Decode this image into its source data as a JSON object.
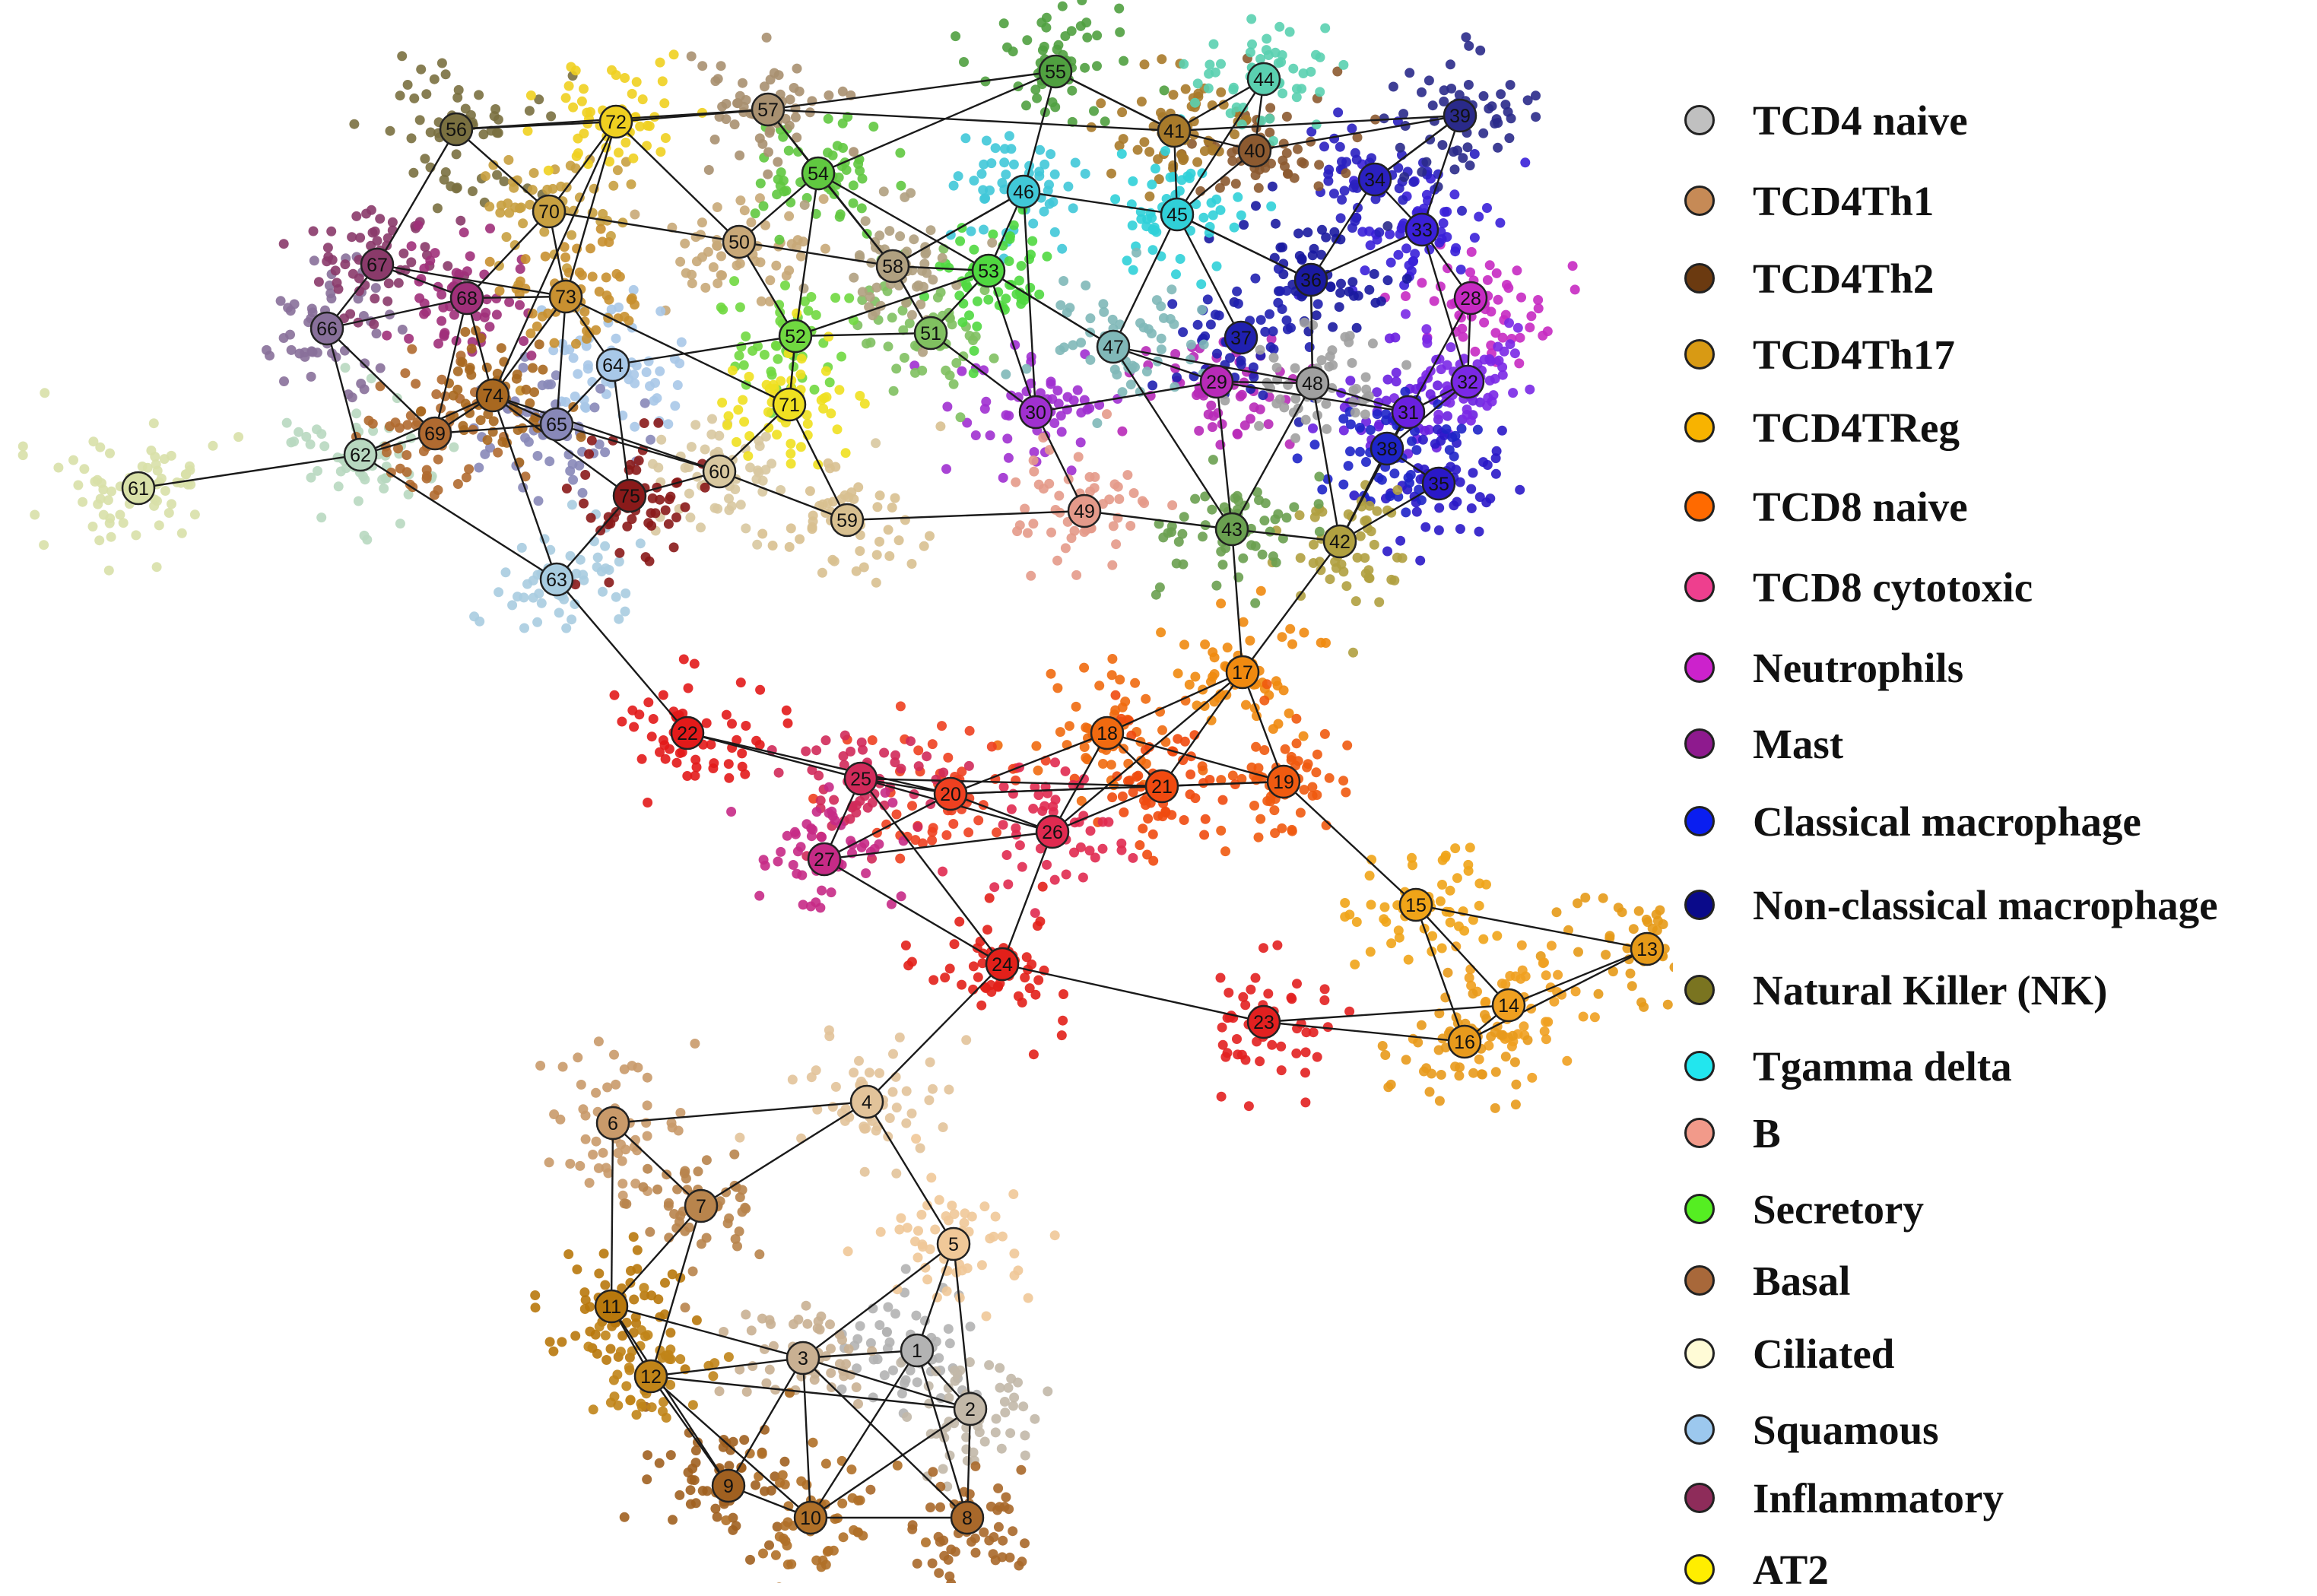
{
  "legend": [
    {
      "label": "TCD4 naive",
      "color": "#c0c0c0"
    },
    {
      "label": "TCD4Th1",
      "color": "#c68a56"
    },
    {
      "label": "TCD4Th2",
      "color": "#6b3a10"
    },
    {
      "label": "TCD4Th17",
      "color": "#d89a14"
    },
    {
      "label": "TCD4TReg",
      "color": "#f8b300"
    },
    {
      "label": "TCD8  naive",
      "color": "#ff6a00"
    },
    {
      "label": "TCD8 cytotoxic",
      "color": "#ee3f8e"
    },
    {
      "label": "Neutrophils",
      "color": "#cc22cc"
    },
    {
      "label": "Mast",
      "color": "#8e1a8e"
    },
    {
      "label": "Classical macrophage",
      "color": "#0a1ef0"
    },
    {
      "label": "Non-classical macrophage",
      "color": "#0a0a8a"
    },
    {
      "label": "Natural Killer (NK)",
      "color": "#7a7420"
    },
    {
      "label": "Tgamma delta",
      "color": "#22e6ee"
    },
    {
      "label": "B",
      "color": "#f29a8a"
    },
    {
      "label": "Secretory",
      "color": "#55ee22"
    },
    {
      "label": "Basal",
      "color": "#a8683a"
    },
    {
      "label": "Ciliated",
      "color": "#fffbd6"
    },
    {
      "label": "Squamous",
      "color": "#9cc8ee"
    },
    {
      "label": "Inflammatory",
      "color": "#8e2c5a"
    },
    {
      "label": "AT2",
      "color": "#ffee00"
    }
  ],
  "nodes": [
    {
      "id": "1",
      "color": "#b3b3b3"
    },
    {
      "id": "2",
      "color": "#c2b8a8"
    },
    {
      "id": "3",
      "color": "#c9b092"
    },
    {
      "id": "4",
      "color": "#e2c39a"
    },
    {
      "id": "5",
      "color": "#f0c898"
    },
    {
      "id": "6",
      "color": "#c99a6a"
    },
    {
      "id": "7",
      "color": "#b8844c"
    },
    {
      "id": "8",
      "color": "#a8682a"
    },
    {
      "id": "9",
      "color": "#a06020"
    },
    {
      "id": "10",
      "color": "#b07028"
    },
    {
      "id": "11",
      "color": "#b8780c"
    },
    {
      "id": "12",
      "color": "#c08418"
    },
    {
      "id": "13",
      "color": "#e69a18"
    },
    {
      "id": "14",
      "color": "#f0a020"
    },
    {
      "id": "15",
      "color": "#f0a418"
    },
    {
      "id": "16",
      "color": "#e89a1c"
    },
    {
      "id": "17",
      "color": "#f08a10"
    },
    {
      "id": "18",
      "color": "#f06a10"
    },
    {
      "id": "19",
      "color": "#f05a10"
    },
    {
      "id": "20",
      "color": "#ee4020"
    },
    {
      "id": "21",
      "color": "#f04a10"
    },
    {
      "id": "22",
      "color": "#e21a1a"
    },
    {
      "id": "23",
      "color": "#e22020"
    },
    {
      "id": "24",
      "color": "#e2201a"
    },
    {
      "id": "25",
      "color": "#d02a5a"
    },
    {
      "id": "26",
      "color": "#e02a50"
    },
    {
      "id": "27",
      "color": "#c62a86"
    },
    {
      "id": "28",
      "color": "#c62ac2"
    },
    {
      "id": "29",
      "color": "#b82ab8"
    },
    {
      "id": "30",
      "color": "#a030d0"
    },
    {
      "id": "31",
      "color": "#6a20e0"
    },
    {
      "id": "32",
      "color": "#7a28e6"
    },
    {
      "id": "33",
      "color": "#3a20d8"
    },
    {
      "id": "34",
      "color": "#2a20c0"
    },
    {
      "id": "35",
      "color": "#2a18c8"
    },
    {
      "id": "36",
      "color": "#1a1aa0"
    },
    {
      "id": "37",
      "color": "#2020b0"
    },
    {
      "id": "38",
      "color": "#1e24c8"
    },
    {
      "id": "39",
      "color": "#2a2a8a"
    },
    {
      "id": "40",
      "color": "#8c5a30"
    },
    {
      "id": "41",
      "color": "#a87a2a"
    },
    {
      "id": "42",
      "color": "#b0a040"
    },
    {
      "id": "43",
      "color": "#6aa050"
    },
    {
      "id": "44",
      "color": "#5ad0b0"
    },
    {
      "id": "45",
      "color": "#30d0d8"
    },
    {
      "id": "46",
      "color": "#40c8d8"
    },
    {
      "id": "47",
      "color": "#80b8b8"
    },
    {
      "id": "48",
      "color": "#a0a0a0"
    },
    {
      "id": "49",
      "color": "#e49a8a"
    },
    {
      "id": "50",
      "color": "#c8a878"
    },
    {
      "id": "51",
      "color": "#80c060"
    },
    {
      "id": "52",
      "color": "#70d840"
    },
    {
      "id": "53",
      "color": "#50d840"
    },
    {
      "id": "54",
      "color": "#60c840"
    },
    {
      "id": "55",
      "color": "#50a040"
    },
    {
      "id": "56",
      "color": "#7a7040"
    },
    {
      "id": "57",
      "color": "#a89070"
    },
    {
      "id": "58",
      "color": "#b0a080"
    },
    {
      "id": "59",
      "color": "#d8c090"
    },
    {
      "id": "60",
      "color": "#d8c8a0"
    },
    {
      "id": "61",
      "color": "#d8e0a8"
    },
    {
      "id": "62",
      "color": "#b8d8c0"
    },
    {
      "id": "63",
      "color": "#a8cce0"
    },
    {
      "id": "64",
      "color": "#a8c8e8"
    },
    {
      "id": "65",
      "color": "#8888b8"
    },
    {
      "id": "66",
      "color": "#88709a"
    },
    {
      "id": "67",
      "color": "#8a3a6a"
    },
    {
      "id": "68",
      "color": "#a0307a"
    },
    {
      "id": "69",
      "color": "#b06a30"
    },
    {
      "id": "70",
      "color": "#c8a040"
    },
    {
      "id": "71",
      "color": "#f0e020"
    },
    {
      "id": "72",
      "color": "#f0d020"
    },
    {
      "id": "73",
      "color": "#c89030"
    },
    {
      "id": "74",
      "color": "#a86820"
    },
    {
      "id": "75",
      "color": "#8a1a1a"
    }
  ],
  "edges": [
    [
      "1",
      "2"
    ],
    [
      "1",
      "3"
    ],
    [
      "1",
      "5"
    ],
    [
      "1",
      "8"
    ],
    [
      "1",
      "10"
    ],
    [
      "2",
      "3"
    ],
    [
      "2",
      "5"
    ],
    [
      "2",
      "8"
    ],
    [
      "2",
      "10"
    ],
    [
      "3",
      "5"
    ],
    [
      "3",
      "9"
    ],
    [
      "3",
      "10"
    ],
    [
      "3",
      "11"
    ],
    [
      "3",
      "12"
    ],
    [
      "2",
      "12"
    ],
    [
      "4",
      "5"
    ],
    [
      "4",
      "6"
    ],
    [
      "4",
      "7"
    ],
    [
      "4",
      "24"
    ],
    [
      "6",
      "7"
    ],
    [
      "6",
      "11"
    ],
    [
      "7",
      "11"
    ],
    [
      "7",
      "12"
    ],
    [
      "9",
      "10"
    ],
    [
      "9",
      "11"
    ],
    [
      "9",
      "12"
    ],
    [
      "10",
      "12"
    ],
    [
      "8",
      "10"
    ],
    [
      "8",
      "3"
    ],
    [
      "11",
      "12"
    ],
    [
      "13",
      "14"
    ],
    [
      "13",
      "15"
    ],
    [
      "13",
      "16"
    ],
    [
      "14",
      "15"
    ],
    [
      "14",
      "16"
    ],
    [
      "15",
      "16"
    ],
    [
      "14",
      "23"
    ],
    [
      "16",
      "23"
    ],
    [
      "15",
      "19"
    ],
    [
      "23",
      "24"
    ],
    [
      "17",
      "18"
    ],
    [
      "17",
      "19"
    ],
    [
      "17",
      "21"
    ],
    [
      "17",
      "42"
    ],
    [
      "17",
      "43"
    ],
    [
      "17",
      "26"
    ],
    [
      "18",
      "19"
    ],
    [
      "18",
      "20"
    ],
    [
      "18",
      "21"
    ],
    [
      "18",
      "26"
    ],
    [
      "19",
      "21"
    ],
    [
      "19",
      "20"
    ],
    [
      "20",
      "21"
    ],
    [
      "20",
      "22"
    ],
    [
      "20",
      "25"
    ],
    [
      "20",
      "26"
    ],
    [
      "20",
      "27"
    ],
    [
      "21",
      "25"
    ],
    [
      "21",
      "26"
    ],
    [
      "22",
      "25"
    ],
    [
      "22",
      "63"
    ],
    [
      "25",
      "26"
    ],
    [
      "25",
      "27"
    ],
    [
      "26",
      "27"
    ],
    [
      "26",
      "24"
    ],
    [
      "27",
      "24"
    ],
    [
      "25",
      "24"
    ],
    [
      "28",
      "31"
    ],
    [
      "28",
      "32"
    ],
    [
      "28",
      "33"
    ],
    [
      "29",
      "30"
    ],
    [
      "29",
      "31"
    ],
    [
      "29",
      "43"
    ],
    [
      "29",
      "47"
    ],
    [
      "29",
      "48"
    ],
    [
      "30",
      "53"
    ],
    [
      "30",
      "46"
    ],
    [
      "31",
      "32"
    ],
    [
      "31",
      "48"
    ],
    [
      "31",
      "38"
    ],
    [
      "31",
      "42"
    ],
    [
      "32",
      "33"
    ],
    [
      "33",
      "34"
    ],
    [
      "33",
      "36"
    ],
    [
      "34",
      "39"
    ],
    [
      "34",
      "36"
    ],
    [
      "35",
      "38"
    ],
    [
      "36",
      "45"
    ],
    [
      "36",
      "48"
    ],
    [
      "37",
      "45"
    ],
    [
      "38",
      "42"
    ],
    [
      "39",
      "40"
    ],
    [
      "39",
      "41"
    ],
    [
      "39",
      "34"
    ],
    [
      "40",
      "41"
    ],
    [
      "40",
      "44"
    ],
    [
      "40",
      "45"
    ],
    [
      "41",
      "44"
    ],
    [
      "41",
      "55"
    ],
    [
      "41",
      "45"
    ],
    [
      "41",
      "57"
    ],
    [
      "42",
      "43"
    ],
    [
      "42",
      "48"
    ],
    [
      "43",
      "48"
    ],
    [
      "43",
      "49"
    ],
    [
      "43",
      "47"
    ],
    [
      "44",
      "45"
    ],
    [
      "45",
      "46"
    ],
    [
      "45",
      "47"
    ],
    [
      "46",
      "53"
    ],
    [
      "46",
      "55"
    ],
    [
      "46",
      "58"
    ],
    [
      "47",
      "48"
    ],
    [
      "47",
      "53"
    ],
    [
      "49",
      "59"
    ],
    [
      "49",
      "30"
    ],
    [
      "50",
      "52"
    ],
    [
      "50",
      "54"
    ],
    [
      "50",
      "58"
    ],
    [
      "50",
      "70"
    ],
    [
      "51",
      "52"
    ],
    [
      "51",
      "53"
    ],
    [
      "51",
      "58"
    ],
    [
      "51",
      "30"
    ],
    [
      "52",
      "53"
    ],
    [
      "52",
      "54"
    ],
    [
      "52",
      "71"
    ],
    [
      "52",
      "64"
    ],
    [
      "53",
      "54"
    ],
    [
      "53",
      "58"
    ],
    [
      "54",
      "57"
    ],
    [
      "54",
      "58"
    ],
    [
      "54",
      "55"
    ],
    [
      "55",
      "57"
    ],
    [
      "55",
      "41"
    ],
    [
      "56",
      "57"
    ],
    [
      "56",
      "70"
    ],
    [
      "56",
      "72"
    ],
    [
      "56",
      "67"
    ],
    [
      "57",
      "72"
    ],
    [
      "57",
      "58"
    ],
    [
      "58",
      "51"
    ],
    [
      "59",
      "60"
    ],
    [
      "59",
      "71"
    ],
    [
      "60",
      "71"
    ],
    [
      "60",
      "74"
    ],
    [
      "60",
      "65"
    ],
    [
      "60",
      "75"
    ],
    [
      "61",
      "62"
    ],
    [
      "62",
      "63"
    ],
    [
      "62",
      "66"
    ],
    [
      "62",
      "69"
    ],
    [
      "62",
      "74"
    ],
    [
      "63",
      "74"
    ],
    [
      "63",
      "75"
    ],
    [
      "64",
      "65"
    ],
    [
      "64",
      "73"
    ],
    [
      "64",
      "75"
    ],
    [
      "65",
      "69"
    ],
    [
      "65",
      "73"
    ],
    [
      "65",
      "74"
    ],
    [
      "66",
      "67"
    ],
    [
      "66",
      "68"
    ],
    [
      "66",
      "69"
    ],
    [
      "67",
      "68"
    ],
    [
      "67",
      "73"
    ],
    [
      "68",
      "73"
    ],
    [
      "68",
      "69"
    ],
    [
      "68",
      "74"
    ],
    [
      "69",
      "74"
    ],
    [
      "70",
      "72"
    ],
    [
      "70",
      "73"
    ],
    [
      "70",
      "68"
    ],
    [
      "71",
      "73"
    ],
    [
      "71",
      "52"
    ],
    [
      "72",
      "73"
    ],
    [
      "72",
      "74"
    ],
    [
      "72",
      "50"
    ],
    [
      "73",
      "74"
    ],
    [
      "74",
      "75"
    ],
    [
      "53",
      "47"
    ],
    [
      "58",
      "46"
    ],
    [
      "45",
      "36"
    ],
    [
      "33",
      "39"
    ],
    [
      "32",
      "38"
    ],
    [
      "35",
      "42"
    ],
    [
      "48",
      "36"
    ]
  ]
}
